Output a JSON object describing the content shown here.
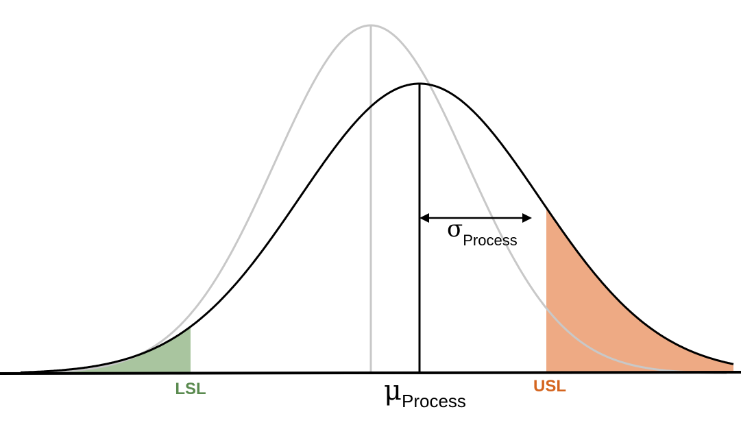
{
  "labels": {
    "lsl": "LSL",
    "usl": "USL",
    "mu_symbol": "μ",
    "mu_subscript": "Process",
    "sigma_symbol": "σ",
    "sigma_subscript": "Process"
  },
  "colors": {
    "reference_curve": "#c8c8c8",
    "process_curve": "#000000",
    "lsl_fill": "#a9c59f",
    "lsl_text": "#5a8a4f",
    "usl_fill": "#eeaa84",
    "usl_text": "#d4651f",
    "baseline": "#000000"
  }
}
